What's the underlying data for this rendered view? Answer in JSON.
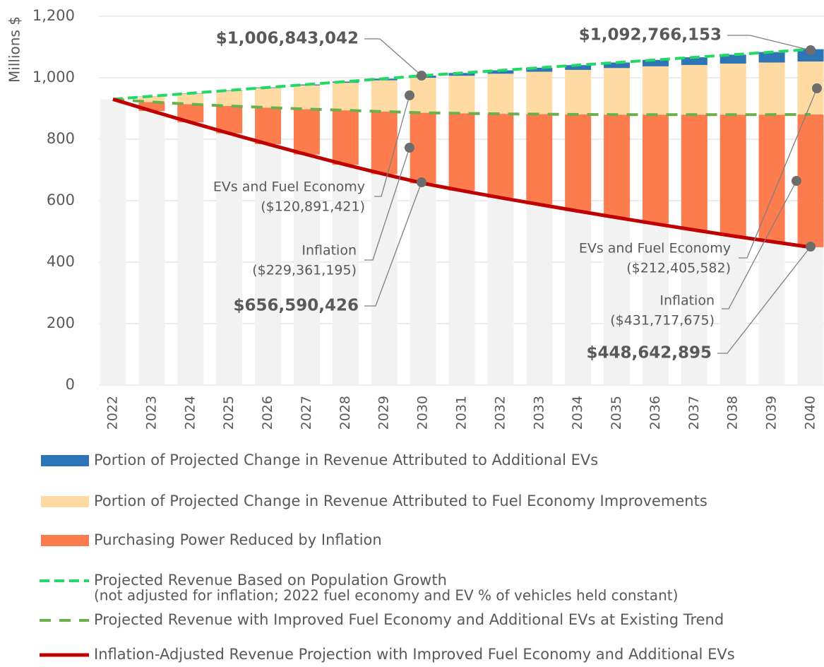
{
  "chart_data": {
    "type": "stacked_bar_line",
    "y_axis_label": "Millions $",
    "categories": [
      "2022",
      "2023",
      "2024",
      "2025",
      "2026",
      "2027",
      "2028",
      "2029",
      "2030",
      "2031",
      "2032",
      "2033",
      "2034",
      "2035",
      "2036",
      "2037",
      "2038",
      "2039",
      "2040"
    ],
    "ylim": [
      0,
      1200
    ],
    "yticks": [
      0,
      200,
      400,
      600,
      800,
      {
        "value": 1000,
        "label": "1,000"
      },
      {
        "value": 1200,
        "label": "1,200"
      }
    ],
    "grid": true,
    "base_color": "#f2f2f2",
    "series": [
      {
        "name": "Purchasing Power Reduced by Inflation",
        "kind": "bar",
        "color": "#fc7c4e",
        "values": [
          0,
          29,
          59,
          89,
          119,
          148,
          177,
          204,
          229.4,
          251.4,
          272.9,
          293.9,
          314.4,
          334.9,
          355.4,
          375.4,
          394.9,
          413.4,
          431.8
        ]
      },
      {
        "name": "Portion of Projected Change in Revenue Attributed to Fuel Economy Improvements",
        "kind": "bar",
        "color": "#ffdba3",
        "values": [
          0,
          18.5,
          34.5,
          49.5,
          63.5,
          77,
          89.5,
          101.5,
          113.8,
          122.5,
          130.5,
          138,
          145,
          151.5,
          157,
          161.5,
          166,
          169.5,
          172.4
        ]
      },
      {
        "name": "Portion of Projected Change in Revenue Attributed to Additional EVs",
        "kind": "bar",
        "color": "#2e75b6",
        "values": [
          0,
          0.5,
          1,
          1.5,
          2,
          3,
          4,
          5.5,
          7,
          9,
          11,
          13,
          15.5,
          18,
          21,
          25,
          29,
          34,
          40
        ]
      },
      {
        "name": "Projected Revenue Based on Population Growth",
        "note": "(not adjusted for inflation; 2022 fuel economy and EV % of vehicles held constant)",
        "kind": "line",
        "dash": "dense",
        "color": "#22d966",
        "values": [
          930,
          940,
          949.5,
          959,
          968.5,
          978,
          987.5,
          997,
          1006.8,
          1015.5,
          1024,
          1032.5,
          1041,
          1049.5,
          1058,
          1066.5,
          1075,
          1083.5,
          1092.8
        ]
      },
      {
        "name": "Projected Revenue with Improved Fuel Economy and Additional EVs at Existing Trend",
        "kind": "line",
        "dash": "wide",
        "color": "#6ab04c",
        "values": [
          930,
          921,
          914,
          908,
          903,
          898,
          894,
          890,
          886,
          884,
          882.5,
          881.5,
          880.5,
          880,
          880,
          880,
          880,
          880,
          880.4
        ]
      },
      {
        "name": "Inflation-Adjusted Revenue Projection with Improved Fuel Economy and Additional EVs",
        "kind": "line",
        "dash": "solid",
        "color": "#c00000",
        "values": [
          930,
          892,
          855,
          819,
          784,
          750,
          717,
          686,
          656.6,
          632.6,
          609.6,
          587.6,
          566.1,
          545.1,
          524.6,
          504.6,
          485.1,
          466.6,
          448.6
        ]
      }
    ],
    "legend_order": [
      2,
      1,
      0,
      3,
      4,
      5
    ],
    "annotations": [
      {
        "lines": [
          "$1,006,843,042"
        ],
        "bold": true
      },
      {
        "lines": [
          "$1,092,766,153"
        ],
        "bold": true
      },
      {
        "lines": [
          "EVs and Fuel Economy",
          "($120,891,421)"
        ],
        "bold": false
      },
      {
        "lines": [
          "Inflation",
          "($229,361,195)"
        ],
        "bold": false
      },
      {
        "lines": [
          "$656,590,426"
        ],
        "bold": true
      },
      {
        "lines": [
          "EVs and Fuel Economy",
          "($212,405,582)"
        ],
        "bold": false
      },
      {
        "lines": [
          "Inflation",
          "($431,717,675)"
        ],
        "bold": false
      },
      {
        "lines": [
          "$448,642,895"
        ],
        "bold": true
      }
    ]
  }
}
